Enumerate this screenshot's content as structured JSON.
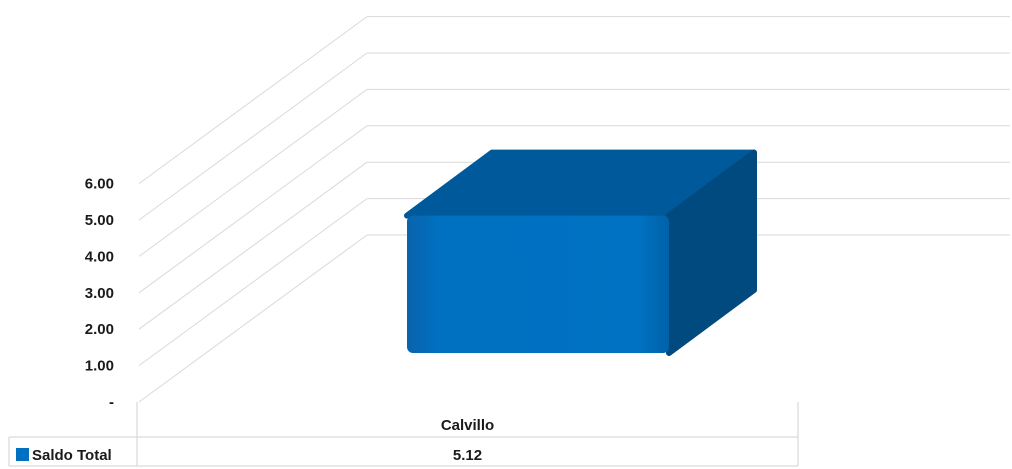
{
  "chart_data": {
    "type": "bar",
    "categories": [
      "Calvillo"
    ],
    "series": [
      {
        "name": "Saldo Total",
        "values": [
          5.12
        ],
        "color": "#0070c0"
      }
    ],
    "ylim": [
      0,
      6
    ],
    "y_ticks": [
      "-",
      "1.00",
      "2.00",
      "3.00",
      "4.00",
      "5.00",
      "6.00"
    ],
    "grid": true,
    "three_d": true,
    "legend": "data-table-below",
    "data_table": {
      "rows": [
        {
          "series": "Saldo Total",
          "cells": [
            "5.12"
          ]
        }
      ]
    }
  }
}
